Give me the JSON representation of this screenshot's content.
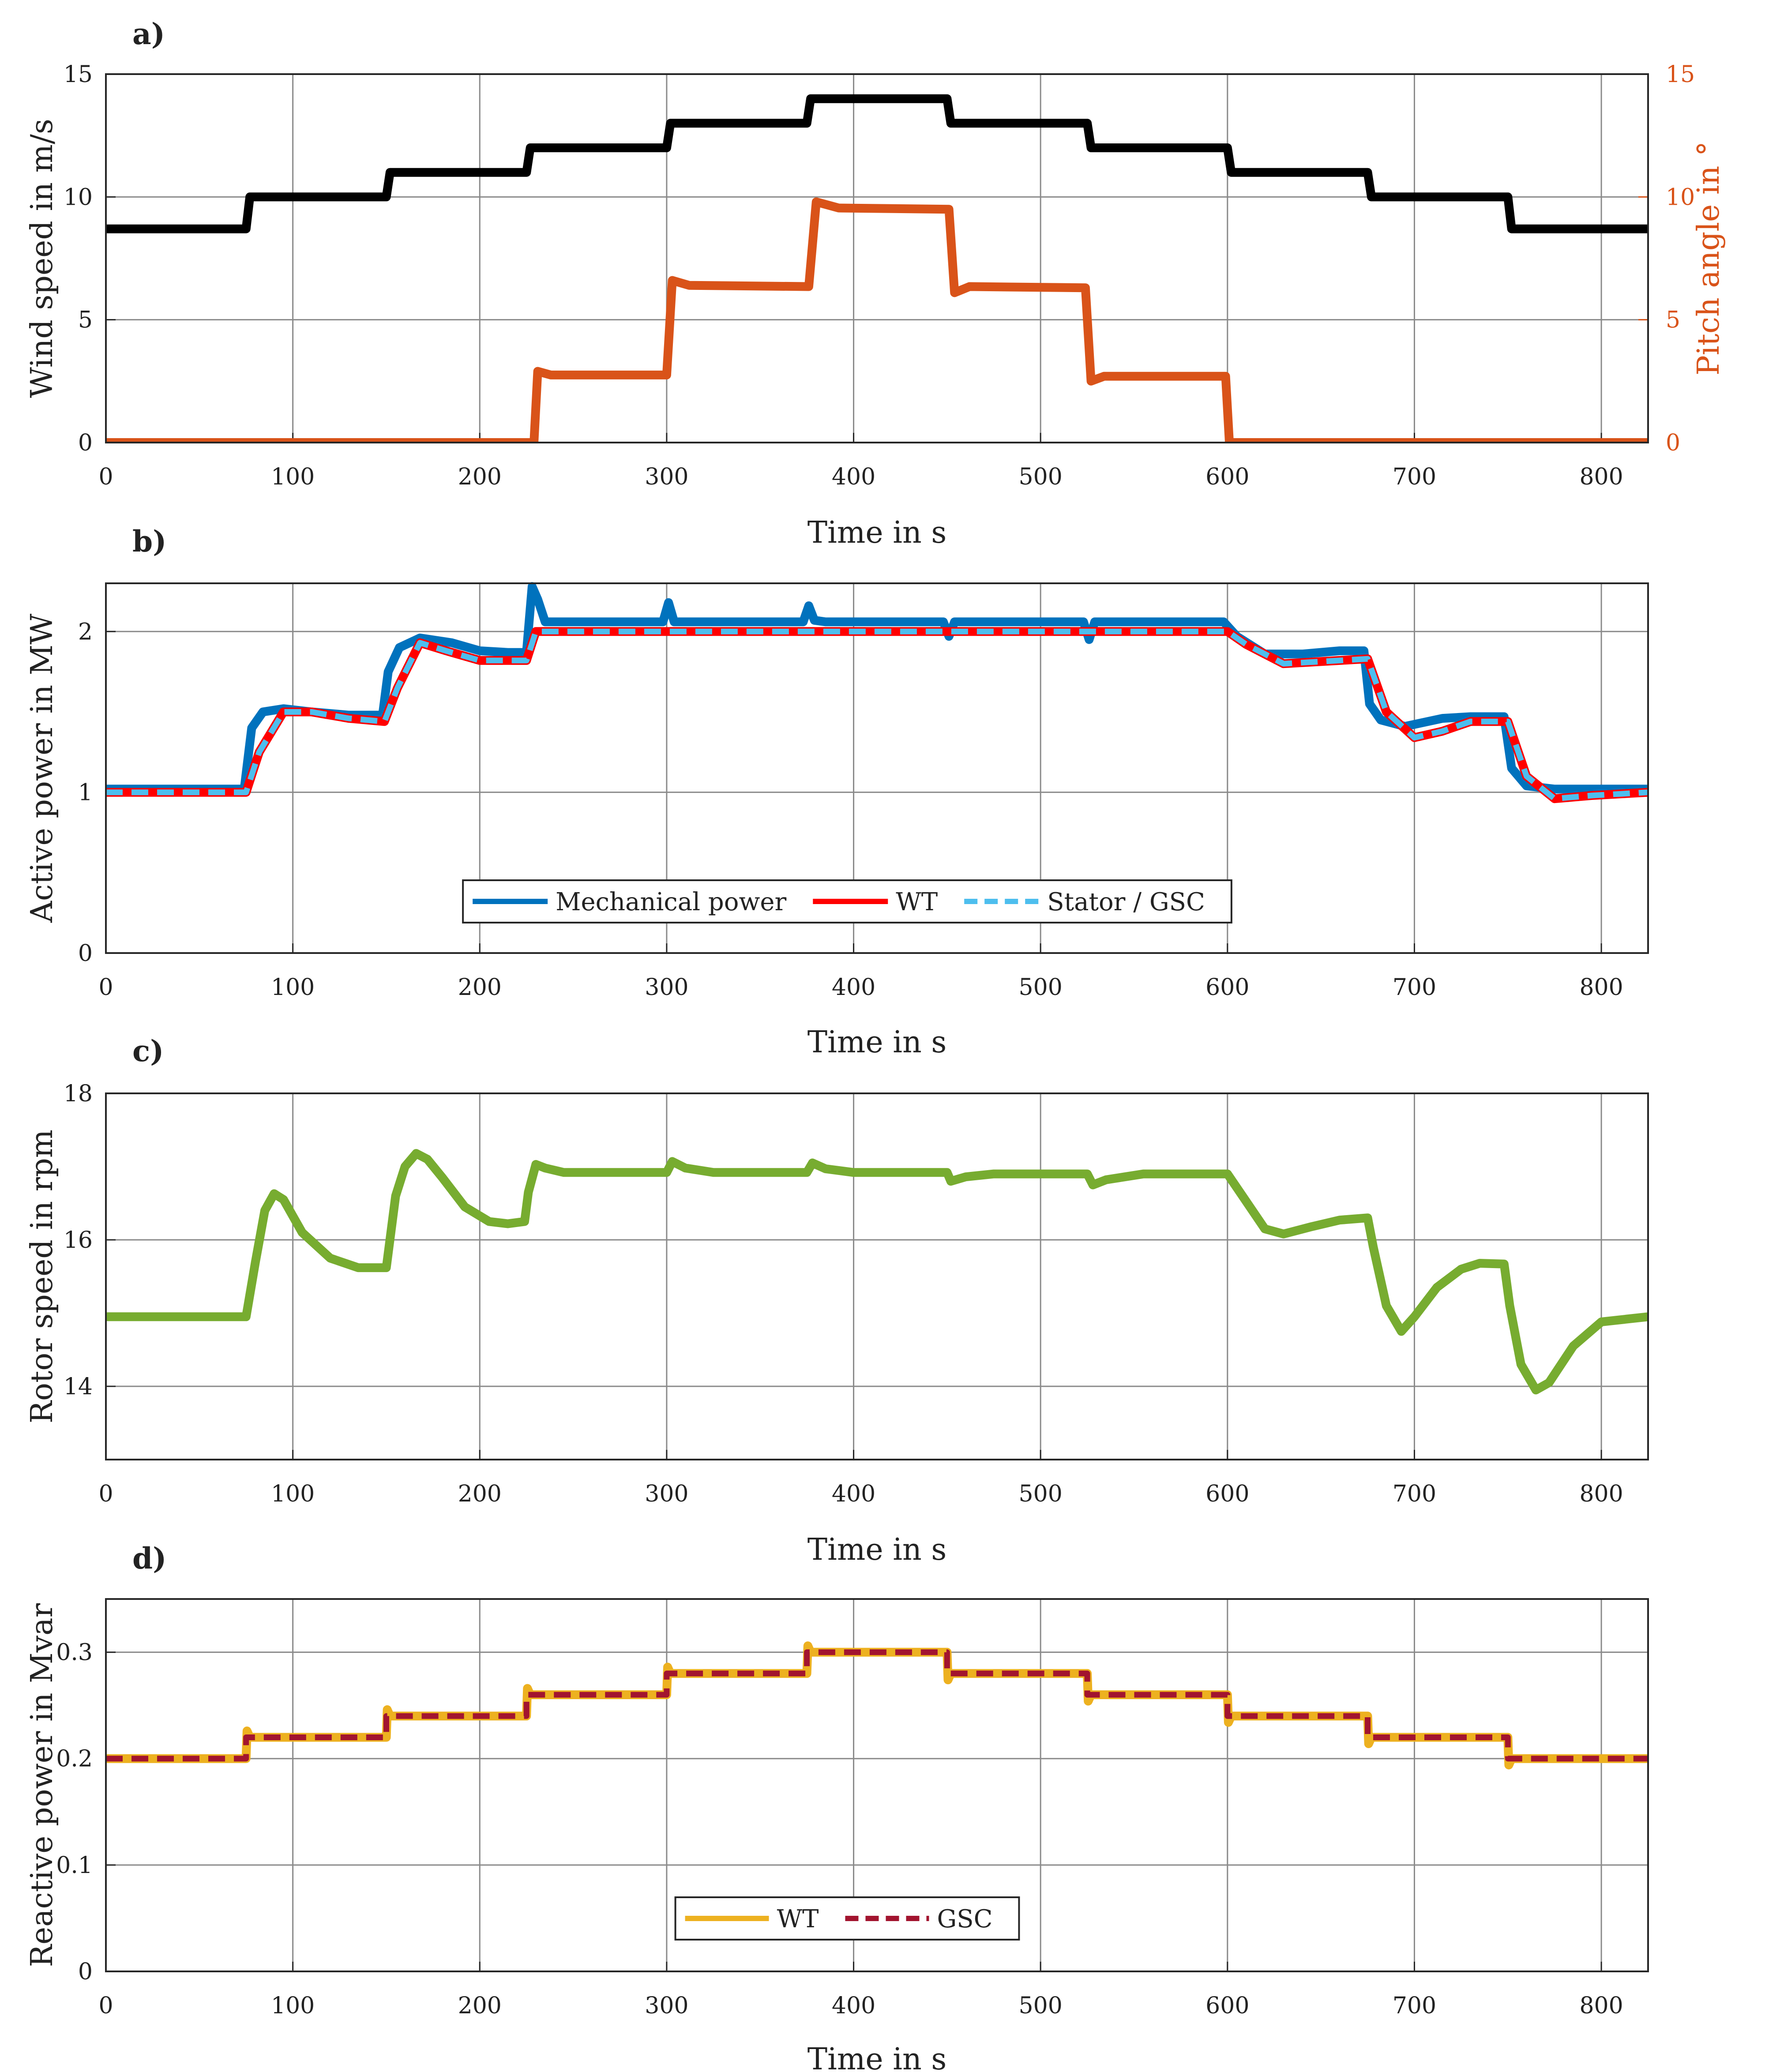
{
  "chart_data": [
    {
      "panel_label": "a)",
      "type": "line",
      "xlabel": "Time in s",
      "ylabel": "Wind speed in m/s",
      "y2label": "Pitch angle in °",
      "xlim": [
        0,
        825
      ],
      "ylim": [
        0,
        15
      ],
      "y2lim": [
        0,
        15
      ],
      "xticks": [
        "0",
        "100",
        "200",
        "300",
        "400",
        "500",
        "600",
        "700",
        "800"
      ],
      "yticks": [
        "0",
        "5",
        "10",
        "15"
      ],
      "y2ticks": [
        "0",
        "5",
        "10",
        "15"
      ],
      "grid": true,
      "series": [
        {
          "name": "Wind speed",
          "axis": "left",
          "color": "#000000",
          "x": [
            0,
            75,
            77,
            150,
            152,
            225,
            227,
            300,
            302,
            375,
            377,
            450,
            452,
            525,
            527,
            600,
            602,
            675,
            677,
            750,
            752,
            825
          ],
          "y": [
            8.7,
            8.7,
            10,
            10,
            11,
            11,
            12,
            12,
            13,
            13,
            14,
            14,
            13,
            13,
            12,
            12,
            11,
            11,
            10,
            10,
            8.7,
            8.7
          ]
        },
        {
          "name": "Pitch angle",
          "axis": "right",
          "color": "#D95319",
          "x": [
            0,
            229,
            231,
            238,
            300,
            303,
            312,
            376,
            380,
            392,
            451,
            454,
            462,
            524,
            527,
            534,
            599,
            601,
            825
          ],
          "y": [
            0,
            0,
            2.9,
            2.75,
            2.75,
            6.6,
            6.4,
            6.35,
            9.8,
            9.55,
            9.5,
            6.1,
            6.35,
            6.3,
            2.5,
            2.7,
            2.7,
            0,
            0
          ]
        }
      ]
    },
    {
      "panel_label": "b)",
      "type": "line",
      "xlabel": "Time in s",
      "ylabel": "Active power in MW",
      "xlim": [
        0,
        825
      ],
      "ylim": [
        0,
        2.3
      ],
      "xticks": [
        "0",
        "100",
        "200",
        "300",
        "400",
        "500",
        "600",
        "700",
        "800"
      ],
      "yticks": [
        "0",
        "1",
        "2"
      ],
      "grid": true,
      "legend_position": "bottom-center",
      "series": [
        {
          "name": "Mechanical power",
          "color": "#0072BD",
          "style": "solid",
          "x": [
            0,
            74,
            78,
            84,
            95,
            110,
            130,
            148,
            151,
            157,
            168,
            185,
            200,
            215,
            225,
            228,
            231,
            235,
            240,
            298,
            301,
            304,
            310,
            373,
            376,
            379,
            385,
            448,
            451,
            454,
            460,
            523,
            526,
            529,
            535,
            598,
            605,
            620,
            640,
            660,
            673,
            676,
            682,
            695,
            715,
            730,
            748,
            752,
            760,
            775,
            800,
            825
          ],
          "y": [
            1.02,
            1.02,
            1.4,
            1.5,
            1.52,
            1.5,
            1.48,
            1.48,
            1.75,
            1.9,
            1.96,
            1.93,
            1.88,
            1.87,
            1.87,
            2.28,
            2.2,
            2.06,
            2.06,
            2.06,
            2.18,
            2.06,
            2.06,
            2.06,
            2.16,
            2.07,
            2.06,
            2.06,
            1.97,
            2.06,
            2.06,
            2.06,
            1.95,
            2.06,
            2.06,
            2.06,
            1.97,
            1.86,
            1.86,
            1.88,
            1.88,
            1.55,
            1.45,
            1.41,
            1.46,
            1.47,
            1.47,
            1.15,
            1.04,
            1.02,
            1.02,
            1.02
          ]
        },
        {
          "name": "WT",
          "color": "#FF0000",
          "style": "solid",
          "x": [
            0,
            75,
            82,
            95,
            110,
            130,
            149,
            156,
            168,
            182,
            200,
            225,
            230,
            240,
            300,
            375,
            450,
            525,
            600,
            610,
            630,
            660,
            675,
            685,
            700,
            715,
            730,
            750,
            760,
            775,
            795,
            825
          ],
          "y": [
            1.0,
            1.0,
            1.25,
            1.5,
            1.5,
            1.46,
            1.44,
            1.65,
            1.93,
            1.88,
            1.82,
            1.82,
            2.0,
            2.0,
            2.0,
            2.0,
            2.0,
            2.0,
            2.0,
            1.92,
            1.8,
            1.82,
            1.83,
            1.5,
            1.34,
            1.38,
            1.44,
            1.44,
            1.1,
            0.96,
            0.98,
            1.0
          ]
        },
        {
          "name": "Stator / GSC",
          "color": "#4DBEEE",
          "style": "dashed",
          "x": [
            0,
            75,
            82,
            95,
            110,
            130,
            149,
            156,
            168,
            182,
            200,
            225,
            230,
            240,
            300,
            375,
            450,
            525,
            600,
            610,
            630,
            660,
            675,
            685,
            700,
            715,
            730,
            750,
            760,
            775,
            795,
            825
          ],
          "y": [
            1.0,
            1.0,
            1.25,
            1.5,
            1.5,
            1.46,
            1.44,
            1.65,
            1.93,
            1.88,
            1.82,
            1.82,
            2.0,
            2.0,
            2.0,
            2.0,
            2.0,
            2.0,
            2.0,
            1.92,
            1.8,
            1.82,
            1.83,
            1.5,
            1.34,
            1.38,
            1.44,
            1.44,
            1.1,
            0.96,
            0.98,
            1.0
          ]
        }
      ]
    },
    {
      "panel_label": "c)",
      "type": "line",
      "xlabel": "Time in s",
      "ylabel": "Rotor speed in rpm",
      "xlim": [
        0,
        825
      ],
      "ylim": [
        13,
        18
      ],
      "xticks": [
        "0",
        "100",
        "200",
        "300",
        "400",
        "500",
        "600",
        "700",
        "800"
      ],
      "yticks": [
        "14",
        "16",
        "18"
      ],
      "grid": true,
      "series": [
        {
          "name": "Rotor speed",
          "color": "#77AC30",
          "x": [
            0,
            75,
            80,
            85,
            90,
            95,
            105,
            120,
            135,
            150,
            155,
            160,
            166,
            172,
            180,
            192,
            205,
            215,
            224,
            226,
            230,
            235,
            245,
            260,
            300,
            303,
            310,
            325,
            375,
            378,
            385,
            400,
            450,
            452,
            460,
            475,
            525,
            528,
            535,
            555,
            600,
            608,
            620,
            630,
            645,
            660,
            675,
            678,
            685,
            693,
            700,
            712,
            725,
            735,
            748,
            751,
            757,
            765,
            772,
            785,
            800,
            825
          ],
          "y": [
            14.95,
            14.95,
            15.7,
            16.4,
            16.63,
            16.55,
            16.1,
            15.75,
            15.62,
            15.62,
            16.6,
            17.0,
            17.18,
            17.1,
            16.85,
            16.45,
            16.25,
            16.22,
            16.25,
            16.65,
            17.03,
            16.98,
            16.92,
            16.92,
            16.92,
            17.07,
            16.98,
            16.92,
            16.92,
            17.05,
            16.97,
            16.92,
            16.92,
            16.8,
            16.86,
            16.9,
            16.9,
            16.75,
            16.82,
            16.9,
            16.9,
            16.6,
            16.15,
            16.08,
            16.18,
            16.27,
            16.3,
            15.9,
            15.1,
            14.75,
            14.95,
            15.35,
            15.6,
            15.68,
            15.67,
            15.1,
            14.3,
            13.95,
            14.05,
            14.55,
            14.88,
            14.95
          ]
        }
      ]
    },
    {
      "panel_label": "d)",
      "type": "line",
      "xlabel": "Time in s",
      "ylabel": "Reactive power in Mvar",
      "xlim": [
        0,
        825
      ],
      "ylim": [
        0,
        0.35
      ],
      "xticks": [
        "0",
        "100",
        "200",
        "300",
        "400",
        "500",
        "600",
        "700",
        "800"
      ],
      "yticks": [
        "0",
        "0.1",
        "0.2",
        "0.3"
      ],
      "grid": true,
      "legend_position": "bottom-center",
      "series": [
        {
          "name": "WT",
          "color": "#EDB120",
          "style": "solid",
          "x": [
            0,
            75,
            75.5,
            77,
            150,
            150.5,
            152,
            225,
            225.5,
            227,
            300,
            300.5,
            302,
            375,
            375.5,
            377,
            450,
            450.5,
            452,
            525,
            525.5,
            527,
            600,
            600.5,
            602,
            675,
            675.5,
            677,
            750,
            750.5,
            752,
            825
          ],
          "y": [
            0.2,
            0.2,
            0.226,
            0.22,
            0.22,
            0.246,
            0.24,
            0.24,
            0.266,
            0.26,
            0.26,
            0.286,
            0.28,
            0.28,
            0.306,
            0.3,
            0.3,
            0.274,
            0.28,
            0.28,
            0.254,
            0.26,
            0.26,
            0.234,
            0.24,
            0.24,
            0.214,
            0.22,
            0.22,
            0.194,
            0.2,
            0.2
          ]
        },
        {
          "name": "GSC",
          "color": "#A2142F",
          "style": "dashed",
          "x": [
            0,
            75,
            75,
            150,
            150,
            225,
            225,
            300,
            300,
            375,
            375,
            450,
            450,
            525,
            525,
            600,
            600,
            675,
            675,
            750,
            750,
            825
          ],
          "y": [
            0.2,
            0.2,
            0.22,
            0.22,
            0.24,
            0.24,
            0.26,
            0.26,
            0.28,
            0.28,
            0.3,
            0.3,
            0.28,
            0.28,
            0.26,
            0.26,
            0.24,
            0.24,
            0.22,
            0.22,
            0.2,
            0.2
          ]
        }
      ]
    }
  ]
}
